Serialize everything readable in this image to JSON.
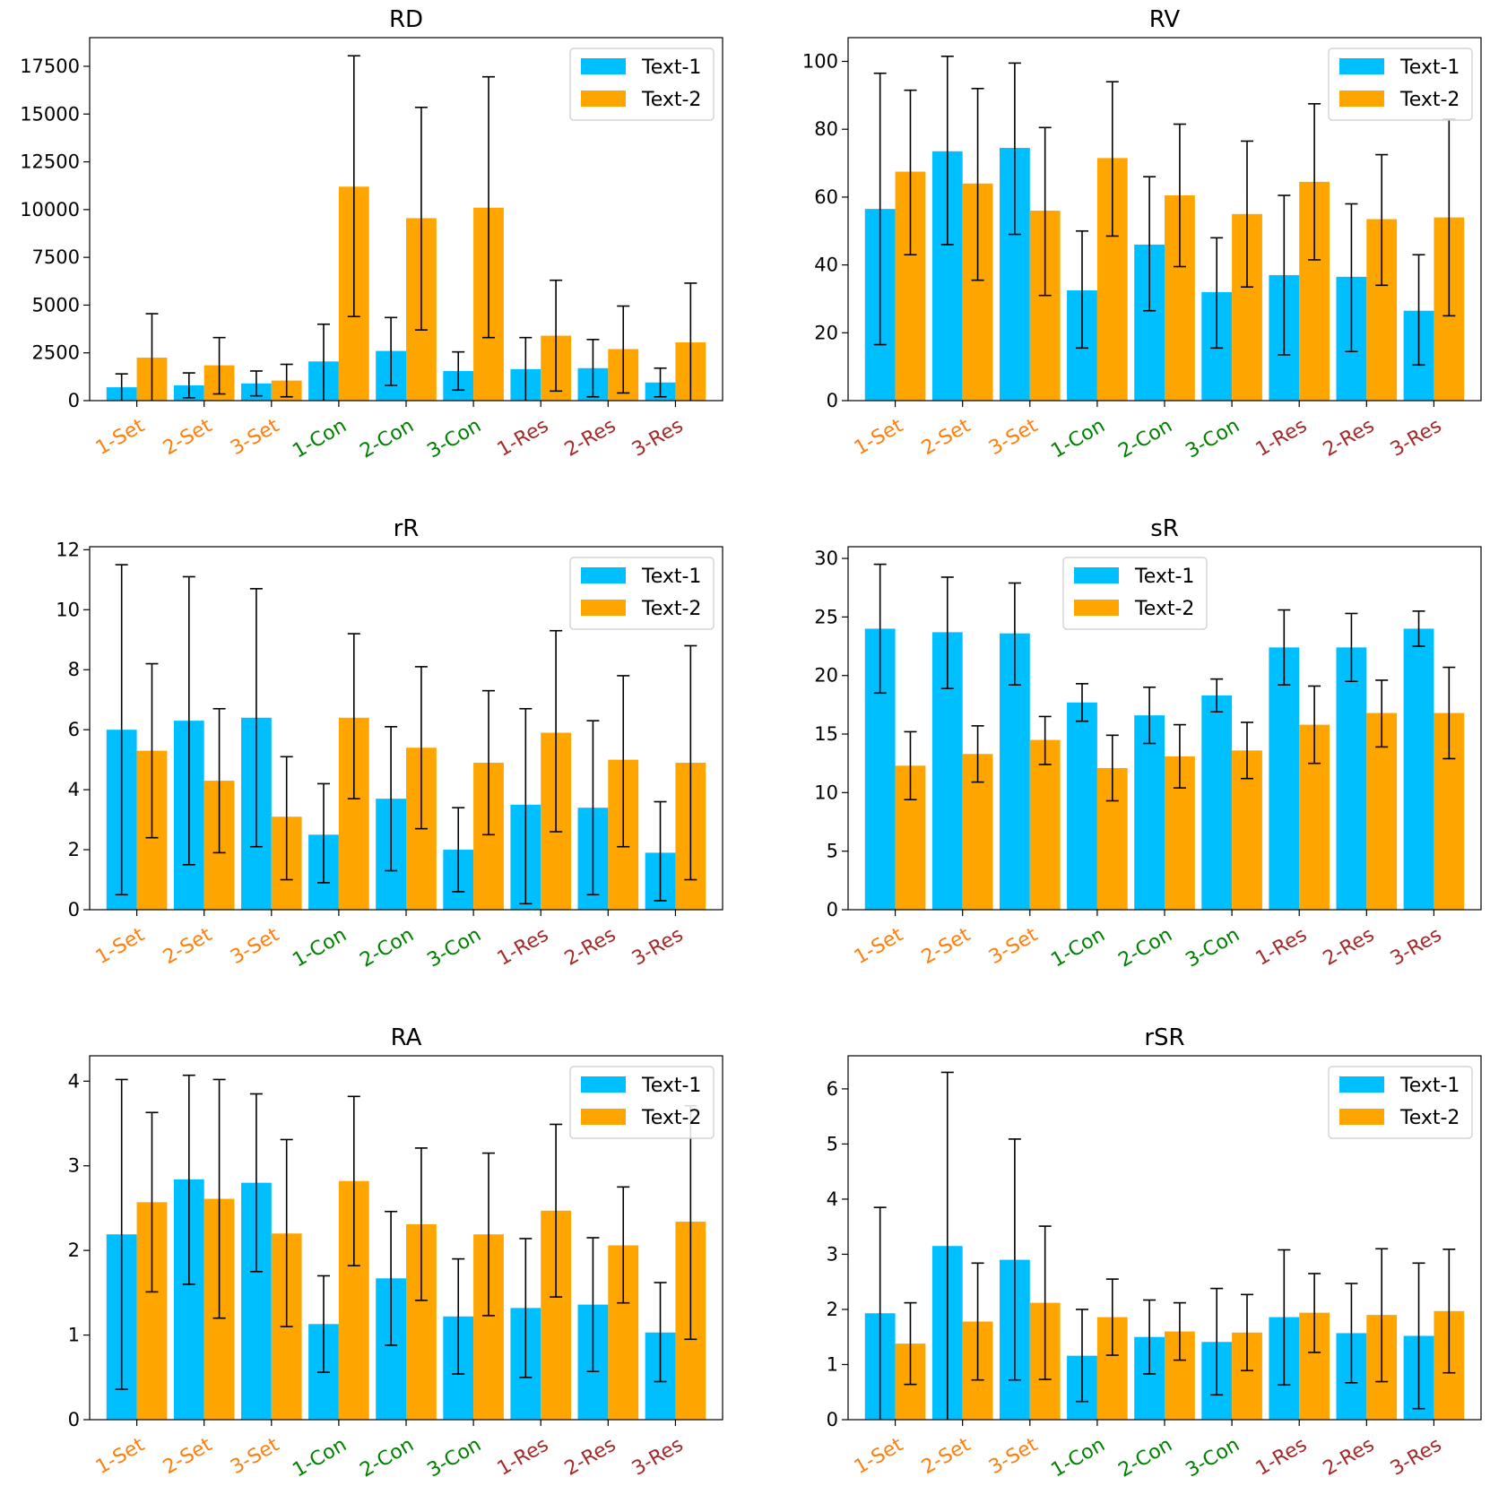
{
  "figure": {
    "legend_labels": [
      "Text-1",
      "Text-2"
    ],
    "colors": {
      "series1": "#00bfff",
      "series2": "#ffa500",
      "set": "#ff7f0e",
      "con": "#008000",
      "res": "#a52a2a"
    }
  },
  "chart_data": [
    {
      "type": "bar",
      "title": "RD",
      "categories": [
        "1-Set",
        "2-Set",
        "3-Set",
        "1-Con",
        "2-Con",
        "3-Con",
        "1-Res",
        "2-Res",
        "3-Res"
      ],
      "category_groups": [
        "set",
        "set",
        "set",
        "con",
        "con",
        "con",
        "res",
        "res",
        "res"
      ],
      "ylim": [
        0,
        19000
      ],
      "yticks": [
        0,
        2500,
        5000,
        7500,
        10000,
        12500,
        15000,
        17500
      ],
      "legend_position": "top-right",
      "series": [
        {
          "name": "Text-1",
          "values": [
            700,
            800,
            900,
            2050,
            2600,
            1550,
            1650,
            1700,
            950
          ],
          "err_low": [
            0,
            150,
            250,
            0,
            800,
            550,
            0,
            200,
            200
          ],
          "err_high": [
            1400,
            1450,
            1550,
            4000,
            4350,
            2550,
            3300,
            3200,
            1700
          ]
        },
        {
          "name": "Text-2",
          "values": [
            2250,
            1850,
            1050,
            11200,
            9550,
            10100,
            3400,
            2700,
            3050
          ],
          "err_low": [
            0,
            350,
            200,
            4400,
            3700,
            3300,
            500,
            400,
            0
          ],
          "err_high": [
            4550,
            3300,
            1900,
            18050,
            15350,
            16950,
            6300,
            4950,
            6150
          ]
        }
      ]
    },
    {
      "type": "bar",
      "title": "RV",
      "categories": [
        "1-Set",
        "2-Set",
        "3-Set",
        "1-Con",
        "2-Con",
        "3-Con",
        "1-Res",
        "2-Res",
        "3-Res"
      ],
      "category_groups": [
        "set",
        "set",
        "set",
        "con",
        "con",
        "con",
        "res",
        "res",
        "res"
      ],
      "ylim": [
        0,
        107
      ],
      "yticks": [
        0,
        20,
        40,
        60,
        80,
        100
      ],
      "legend_position": "top-right",
      "series": [
        {
          "name": "Text-1",
          "values": [
            56.5,
            73.5,
            74.5,
            32.5,
            46,
            32,
            37,
            36.5,
            26.5
          ],
          "err_low": [
            16.5,
            46,
            49,
            15.5,
            26.5,
            15.5,
            13.5,
            14.5,
            10.5
          ],
          "err_high": [
            96.5,
            101.5,
            99.5,
            50,
            66,
            48,
            60.5,
            58,
            43
          ]
        },
        {
          "name": "Text-2",
          "values": [
            67.5,
            64,
            56,
            71.5,
            60.5,
            55,
            64.5,
            53.5,
            54
          ],
          "err_low": [
            43,
            35.5,
            31,
            48.5,
            39.5,
            33.5,
            41.5,
            34,
            25
          ],
          "err_high": [
            91.5,
            92,
            80.5,
            94,
            81.5,
            76.5,
            87.5,
            72.5,
            83
          ]
        }
      ]
    },
    {
      "type": "bar",
      "title": "rR",
      "categories": [
        "1-Set",
        "2-Set",
        "3-Set",
        "1-Con",
        "2-Con",
        "3-Con",
        "1-Res",
        "2-Res",
        "3-Res"
      ],
      "category_groups": [
        "set",
        "set",
        "set",
        "con",
        "con",
        "con",
        "res",
        "res",
        "res"
      ],
      "ylim": [
        0,
        12.1
      ],
      "yticks": [
        0,
        2,
        4,
        6,
        8,
        10,
        12
      ],
      "legend_position": "top-right",
      "series": [
        {
          "name": "Text-1",
          "values": [
            6.0,
            6.3,
            6.4,
            2.5,
            3.7,
            2.0,
            3.5,
            3.4,
            1.9
          ],
          "err_low": [
            0.5,
            1.5,
            2.1,
            0.9,
            1.3,
            0.6,
            0.2,
            0.5,
            0.3
          ],
          "err_high": [
            11.5,
            11.1,
            10.7,
            4.2,
            6.1,
            3.4,
            6.7,
            6.3,
            3.6
          ]
        },
        {
          "name": "Text-2",
          "values": [
            5.3,
            4.3,
            3.1,
            6.4,
            5.4,
            4.9,
            5.9,
            5.0,
            4.9
          ],
          "err_low": [
            2.4,
            1.9,
            1.0,
            3.7,
            2.7,
            2.5,
            2.6,
            2.1,
            1.0
          ],
          "err_high": [
            8.2,
            6.7,
            5.1,
            9.2,
            8.1,
            7.3,
            9.3,
            7.8,
            8.8
          ]
        }
      ]
    },
    {
      "type": "bar",
      "title": "sR",
      "categories": [
        "1-Set",
        "2-Set",
        "3-Set",
        "1-Con",
        "2-Con",
        "3-Con",
        "1-Res",
        "2-Res",
        "3-Res"
      ],
      "category_groups": [
        "set",
        "set",
        "set",
        "con",
        "con",
        "con",
        "res",
        "res",
        "res"
      ],
      "ylim": [
        0,
        31
      ],
      "yticks": [
        0,
        5,
        10,
        15,
        20,
        25,
        30
      ],
      "legend_position": "upper-center",
      "series": [
        {
          "name": "Text-1",
          "values": [
            24,
            23.7,
            23.6,
            17.7,
            16.6,
            18.3,
            22.4,
            22.4,
            24
          ],
          "err_low": [
            18.5,
            18.9,
            19.2,
            16.1,
            14.2,
            16.9,
            19.2,
            19.5,
            22.5
          ],
          "err_high": [
            29.5,
            28.4,
            27.9,
            19.3,
            19,
            19.7,
            25.6,
            25.3,
            25.5
          ]
        },
        {
          "name": "Text-2",
          "values": [
            12.3,
            13.3,
            14.5,
            12.1,
            13.1,
            13.6,
            15.8,
            16.8,
            16.8
          ],
          "err_low": [
            9.4,
            10.9,
            12.4,
            9.3,
            10.4,
            11.2,
            12.5,
            13.9,
            12.9
          ],
          "err_high": [
            15.2,
            15.7,
            16.5,
            14.9,
            15.8,
            16.0,
            19.1,
            19.6,
            20.7
          ]
        }
      ]
    },
    {
      "type": "bar",
      "title": "RA",
      "categories": [
        "1-Set",
        "2-Set",
        "3-Set",
        "1-Con",
        "2-Con",
        "3-Con",
        "1-Res",
        "2-Res",
        "3-Res"
      ],
      "category_groups": [
        "set",
        "set",
        "set",
        "con",
        "con",
        "con",
        "res",
        "res",
        "res"
      ],
      "ylim": [
        0,
        4.3
      ],
      "yticks": [
        0,
        1,
        2,
        3,
        4
      ],
      "legend_position": "top-right",
      "series": [
        {
          "name": "Text-1",
          "values": [
            2.19,
            2.84,
            2.8,
            1.13,
            1.67,
            1.22,
            1.32,
            1.36,
            1.03
          ],
          "err_low": [
            0.36,
            1.6,
            1.75,
            0.56,
            0.88,
            0.54,
            0.5,
            0.57,
            0.45
          ],
          "err_high": [
            4.02,
            4.07,
            3.85,
            1.7,
            2.46,
            1.9,
            2.14,
            2.15,
            1.62
          ]
        },
        {
          "name": "Text-2",
          "values": [
            2.57,
            2.61,
            2.2,
            2.82,
            2.31,
            2.19,
            2.47,
            2.06,
            2.34
          ],
          "err_low": [
            1.51,
            1.2,
            1.1,
            1.82,
            1.41,
            1.23,
            1.45,
            1.38,
            0.95
          ],
          "err_high": [
            3.63,
            4.02,
            3.31,
            3.82,
            3.21,
            3.15,
            3.49,
            2.75,
            3.71
          ]
        }
      ]
    },
    {
      "type": "bar",
      "title": "rSR",
      "categories": [
        "1-Set",
        "2-Set",
        "3-Set",
        "1-Con",
        "2-Con",
        "3-Con",
        "1-Res",
        "2-Res",
        "3-Res"
      ],
      "category_groups": [
        "set",
        "set",
        "set",
        "con",
        "con",
        "con",
        "res",
        "res",
        "res"
      ],
      "ylim": [
        0,
        6.6
      ],
      "yticks": [
        0,
        1,
        2,
        3,
        4,
        5,
        6
      ],
      "legend_position": "top-right",
      "series": [
        {
          "name": "Text-1",
          "values": [
            1.93,
            3.15,
            2.9,
            1.16,
            1.5,
            1.41,
            1.86,
            1.57,
            1.52
          ],
          "err_low": [
            0,
            0,
            0.72,
            0.33,
            0.83,
            0.45,
            0.63,
            0.67,
            0.2
          ],
          "err_high": [
            3.85,
            6.3,
            5.09,
            2.0,
            2.17,
            2.38,
            3.08,
            2.47,
            2.84
          ]
        },
        {
          "name": "Text-2",
          "values": [
            1.38,
            1.78,
            2.12,
            1.86,
            1.6,
            1.58,
            1.94,
            1.9,
            1.97
          ],
          "err_low": [
            0.64,
            0.72,
            0.73,
            1.17,
            1.08,
            0.89,
            1.22,
            0.69,
            0.85
          ],
          "err_high": [
            2.12,
            2.84,
            3.51,
            2.55,
            2.12,
            2.27,
            2.65,
            3.1,
            3.09
          ]
        }
      ]
    }
  ]
}
